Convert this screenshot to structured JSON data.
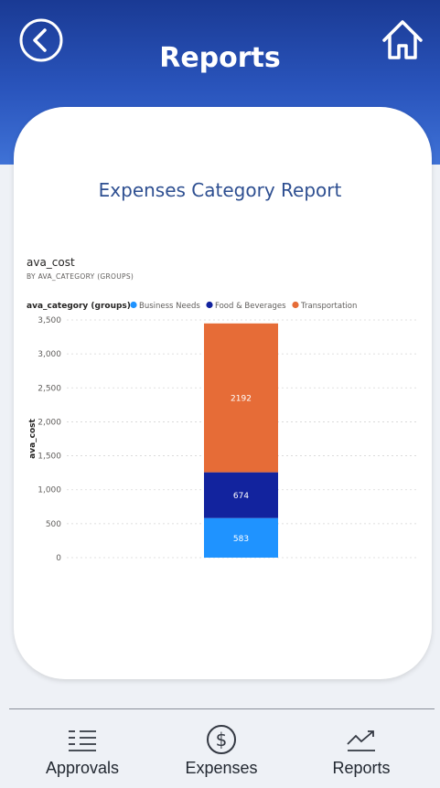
{
  "header": {
    "title": "Reports",
    "back_icon": "chevron-left-circle-icon",
    "home_icon": "home-icon"
  },
  "report": {
    "title": "Expenses Category Report"
  },
  "chart_data": {
    "type": "bar",
    "stacked": true,
    "title": "ava_cost",
    "subtitle": "BY AVA_CATEGORY (GROUPS)",
    "legend_title": "ava_category (groups)",
    "legend_position": "top-left",
    "ylabel": "ava_cost",
    "xlabel": "",
    "ylim": [
      0,
      3500
    ],
    "yticks": [
      0,
      500,
      1000,
      1500,
      2000,
      2500,
      3000,
      3500
    ],
    "ytick_labels": [
      "0",
      "500",
      "1,000",
      "1,500",
      "2,000",
      "2,500",
      "3,000",
      "3,500"
    ],
    "grid": true,
    "categories": [
      ""
    ],
    "series": [
      {
        "name": "Business Needs",
        "color": "#1f93ff",
        "values": [
          583
        ]
      },
      {
        "name": "Food & Beverages",
        "color": "#12239e",
        "values": [
          674
        ]
      },
      {
        "name": "Transportation",
        "color": "#e66c37",
        "values": [
          2192
        ]
      }
    ]
  },
  "bottom_nav": [
    {
      "label": "Approvals",
      "icon": "list-icon"
    },
    {
      "label": "Expenses",
      "icon": "dollar-circle-icon"
    },
    {
      "label": "Reports",
      "icon": "trend-chart-icon"
    }
  ]
}
